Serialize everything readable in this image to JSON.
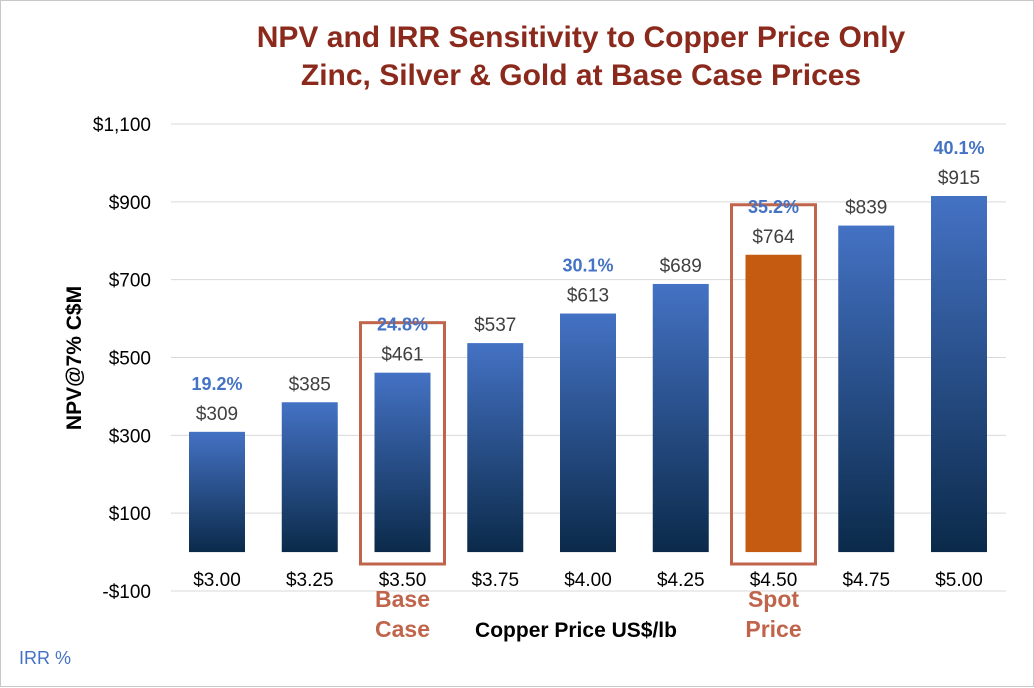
{
  "chart_data": {
    "type": "bar",
    "title": "NPV and IRR Sensitivity to Copper Price Only",
    "subtitle": "Zinc, Silver & Gold at Base Case Prices",
    "xlabel": "Copper Price US$/lb",
    "ylabel": "NPV@7% C$M",
    "ylim": [
      -100,
      1100
    ],
    "yticks": [
      -100,
      100,
      300,
      500,
      700,
      900,
      1100
    ],
    "ytick_labels": [
      "-$100",
      "$100",
      "$300",
      "$500",
      "$700",
      "$900",
      "$1,100"
    ],
    "grid": true,
    "categories": [
      "$3.00",
      "$3.25",
      "$3.50",
      "$3.75",
      "$4.00",
      "$4.25",
      "$4.50",
      "$4.75",
      "$5.00"
    ],
    "values": [
      309,
      385,
      461,
      537,
      613,
      689,
      764,
      839,
      915
    ],
    "value_labels": [
      "$309",
      "$385",
      "$461",
      "$537",
      "$613",
      "$689",
      "$764",
      "$839",
      "$915"
    ],
    "irr_labels": [
      "19.2%",
      "",
      "24.8%",
      "",
      "30.1%",
      "",
      "35.2%",
      "",
      "40.1%"
    ],
    "highlights": [
      {
        "index": 2,
        "label_line1": "Base",
        "label_line2": "Case"
      },
      {
        "index": 6,
        "label_line1": "Spot",
        "label_line2": "Price"
      }
    ],
    "colors": {
      "bar_top": "#4472c4",
      "bar_bottom": "#0b2a4a",
      "spot_bar": "#c55a11",
      "highlight_box": "#c0654b",
      "irr_text": "#4472c4",
      "value_text": "#404040",
      "title": "#8b2a1c",
      "grid": "#d9d9d9"
    }
  },
  "legend_note": "IRR %"
}
